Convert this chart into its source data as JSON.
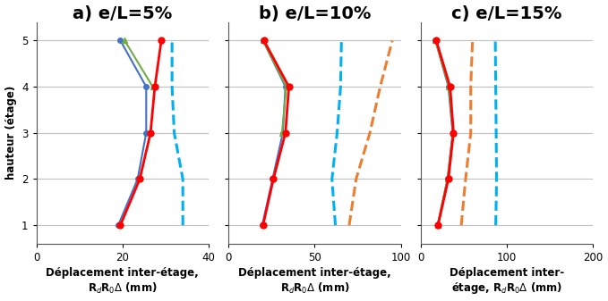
{
  "panels": [
    {
      "title": "a) e/L=5%",
      "xlabel_lines": [
        "Déplacement inter-étage,",
        "R$_d$R$_0$$\\Delta$ (mm)"
      ],
      "xlim": [
        0,
        40
      ],
      "xticks": [
        0,
        20,
        40
      ],
      "lines": [
        {
          "y": [
            1,
            2,
            3,
            4,
            5
          ],
          "x": [
            19.5,
            24.0,
            26.5,
            27.5,
            29.0
          ],
          "color": "#FF0000",
          "ls": "-",
          "lw": 2.0,
          "marker": "o",
          "ms": 5,
          "zorder": 5
        },
        {
          "y": [
            1,
            2,
            3,
            4,
            5
          ],
          "x": [
            19.0,
            23.5,
            25.5,
            25.5,
            19.5
          ],
          "color": "#4472C4",
          "ls": "-",
          "lw": 1.5,
          "marker": "o",
          "ms": 4,
          "zorder": 4
        },
        {
          "y": [
            4,
            5
          ],
          "x": [
            27.0,
            20.5
          ],
          "color": "#70AD47",
          "ls": "-",
          "lw": 1.5,
          "marker": "^",
          "ms": 5,
          "zorder": 4
        },
        {
          "y": [
            1,
            2,
            3,
            4,
            5
          ],
          "x": [
            34.0,
            34.0,
            32.0,
            31.5,
            31.5
          ],
          "color": "#00B0F0",
          "ls": "--",
          "lw": 2.2,
          "marker": "None",
          "ms": 0,
          "zorder": 3
        }
      ]
    },
    {
      "title": "b) e/L=10%",
      "xlabel_lines": [
        "Déplacement inter-étage,",
        "R$_d$R$_0$$\\Delta$ (mm)"
      ],
      "xlim": [
        0,
        100
      ],
      "xticks": [
        0,
        50,
        100
      ],
      "lines": [
        {
          "y": [
            1,
            2,
            3,
            4,
            5
          ],
          "x": [
            20.0,
            26.0,
            33.0,
            35.0,
            20.5
          ],
          "color": "#FF0000",
          "ls": "-",
          "lw": 2.0,
          "marker": "o",
          "ms": 5,
          "zorder": 5
        },
        {
          "y": [
            1,
            2,
            3,
            4,
            5
          ],
          "x": [
            19.5,
            25.5,
            31.5,
            33.0,
            20.0
          ],
          "color": "#4472C4",
          "ls": "-",
          "lw": 1.5,
          "marker": "o",
          "ms": 4,
          "zorder": 4
        },
        {
          "y": [
            3,
            4,
            5
          ],
          "x": [
            31.0,
            33.5,
            20.0
          ],
          "color": "#70AD47",
          "ls": "-",
          "lw": 1.5,
          "marker": "^",
          "ms": 5,
          "zorder": 4
        },
        {
          "y": [
            1,
            2,
            3,
            4,
            5
          ],
          "x": [
            62.0,
            60.0,
            63.0,
            65.0,
            65.5
          ],
          "color": "#00B0F0",
          "ls": "--",
          "lw": 2.2,
          "marker": "None",
          "ms": 0,
          "zorder": 3
        },
        {
          "y": [
            1,
            2,
            3,
            4,
            5
          ],
          "x": [
            70.0,
            74.0,
            82.0,
            88.0,
            95.0
          ],
          "color": "#ED7D31",
          "ls": "--",
          "lw": 2.2,
          "marker": "None",
          "ms": 0,
          "zorder": 3
        }
      ]
    },
    {
      "title": "c) e/L=15%",
      "xlabel_lines": [
        "Déplacement inter-",
        "étage, R$_d$R$_0$$\\Delta$ (mm)"
      ],
      "xlim": [
        0,
        200
      ],
      "xticks": [
        0,
        100,
        200
      ],
      "lines": [
        {
          "y": [
            1,
            2,
            3,
            4,
            5
          ],
          "x": [
            20.0,
            32.0,
            38.0,
            34.0,
            18.0
          ],
          "color": "#FF0000",
          "ls": "-",
          "lw": 2.0,
          "marker": "o",
          "ms": 5,
          "zorder": 5
        },
        {
          "y": [
            1,
            2,
            3,
            4,
            5
          ],
          "x": [
            19.5,
            31.0,
            37.0,
            32.0,
            17.0
          ],
          "color": "#4472C4",
          "ls": "-",
          "lw": 1.5,
          "marker": "o",
          "ms": 4,
          "zorder": 4
        },
        {
          "y": [
            1,
            2,
            3,
            4,
            5
          ],
          "x": [
            19.5,
            31.0,
            37.5,
            32.5,
            17.0
          ],
          "color": "#70AD47",
          "ls": "-",
          "lw": 1.5,
          "marker": "^",
          "ms": 5,
          "zorder": 4
        },
        {
          "y": [
            1,
            2,
            3,
            4,
            5
          ],
          "x": [
            87.0,
            88.0,
            87.5,
            87.0,
            86.5
          ],
          "color": "#00B0F0",
          "ls": "--",
          "lw": 2.2,
          "marker": "None",
          "ms": 0,
          "zorder": 3
        },
        {
          "y": [
            1,
            2,
            3,
            4,
            5
          ],
          "x": [
            47.0,
            52.0,
            58.0,
            58.0,
            60.0
          ],
          "color": "#ED7D31",
          "ls": "--",
          "lw": 2.2,
          "marker": "None",
          "ms": 0,
          "zorder": 3
        }
      ]
    }
  ],
  "ylabel": "hauteur (étage)",
  "yticks": [
    1,
    2,
    3,
    4,
    5
  ],
  "ylim": [
    0.6,
    5.4
  ],
  "title_fontsize": 14,
  "label_fontsize": 8.5,
  "tick_fontsize": 8.5,
  "bg_color": "#FFFFFF",
  "grid_color": "#C0C0C0",
  "spine_color": "#555555"
}
